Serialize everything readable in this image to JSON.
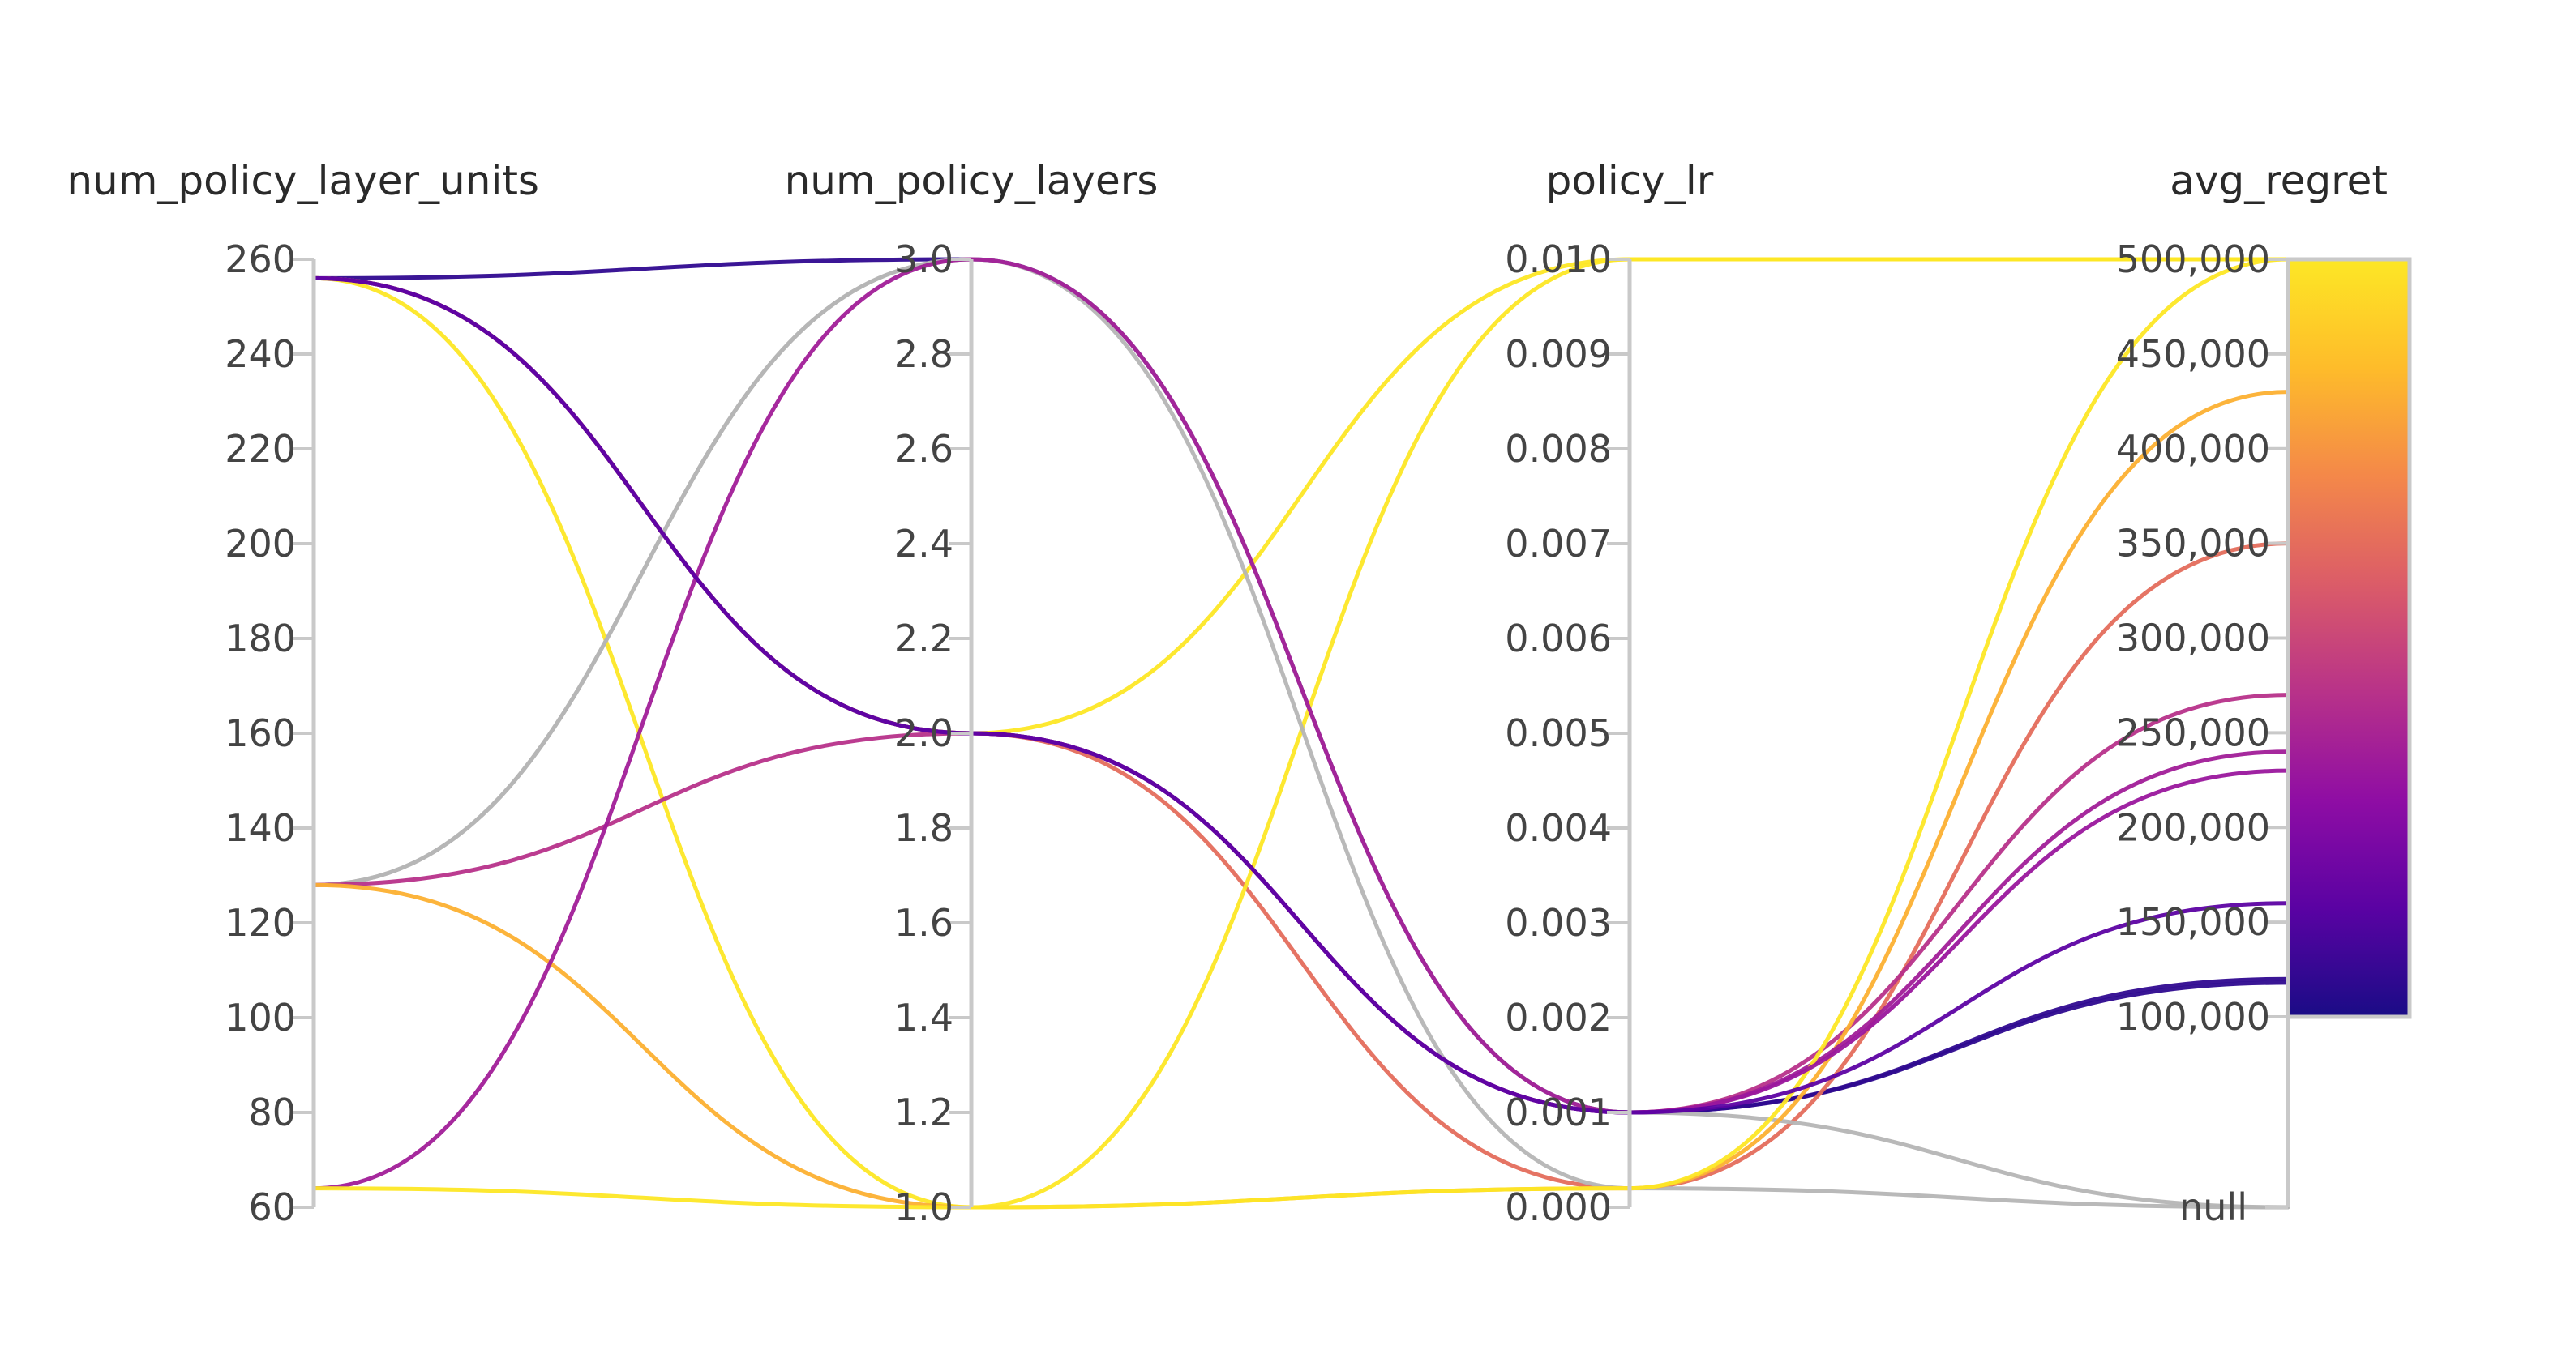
{
  "chart_data": {
    "type": "parallel_coordinates",
    "axes": [
      {
        "key": "num_policy_layer_units",
        "label": "num_policy_layer_units",
        "range": [
          60,
          260
        ],
        "ticks": [
          "60",
          "80",
          "100",
          "120",
          "140",
          "160",
          "180",
          "200",
          "220",
          "240",
          "260"
        ]
      },
      {
        "key": "num_policy_layers",
        "label": "num_policy_layers",
        "range": [
          1.0,
          3.0
        ],
        "ticks": [
          "1.0",
          "1.2",
          "1.4",
          "1.6",
          "1.8",
          "2.0",
          "2.2",
          "2.4",
          "2.6",
          "2.8",
          "3.0"
        ]
      },
      {
        "key": "policy_lr",
        "label": "policy_lr",
        "range": [
          0.0,
          0.01
        ],
        "ticks": [
          "0.000",
          "0.001",
          "0.002",
          "0.003",
          "0.004",
          "0.005",
          "0.006",
          "0.007",
          "0.008",
          "0.009",
          "0.010"
        ]
      },
      {
        "key": "avg_regret",
        "label": "avg_regret",
        "range": [
          0,
          500000
        ],
        "ticks": [
          "100,000",
          "150,000",
          "200,000",
          "250,000",
          "300,000",
          "350,000",
          "400,000",
          "450,000",
          "500,000"
        ],
        "null_label": "null"
      }
    ],
    "colorbar": {
      "min": 100000,
      "max": 500000,
      "stops": [
        "#1a0c86",
        "#5a02a3",
        "#8f0da4",
        "#b83289",
        "#db5c68",
        "#f48849",
        "#febc2a",
        "#fde725"
      ]
    },
    "null_color": "#b5b5b5",
    "lines": [
      {
        "values": [
          256,
          3,
          0.001,
          120000
        ]
      },
      {
        "values": [
          256,
          2,
          0.001,
          118000
        ]
      },
      {
        "values": [
          256,
          2,
          0.0002,
          350000
        ]
      },
      {
        "values": [
          256,
          2,
          0.01,
          500000
        ]
      },
      {
        "values": [
          256,
          1,
          0.01,
          500000
        ]
      },
      {
        "values": [
          128,
          3,
          0.001,
          null
        ]
      },
      {
        "values": [
          128,
          3,
          0.0002,
          null
        ]
      },
      {
        "values": [
          128,
          2,
          0.001,
          270000
        ]
      },
      {
        "values": [
          128,
          1,
          0.0002,
          430000
        ]
      },
      {
        "values": [
          64,
          3,
          0.001,
          240000
        ]
      },
      {
        "values": [
          64,
          1,
          0.0002,
          500000
        ]
      },
      {
        "values": [
          256,
          2,
          0.001,
          230000
        ]
      },
      {
        "values": [
          256,
          2,
          0.001,
          160000
        ]
      }
    ]
  }
}
